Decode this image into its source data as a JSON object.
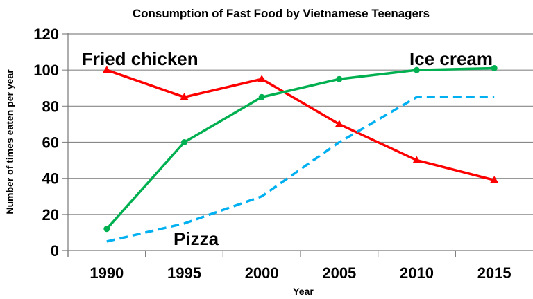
{
  "chart_data": {
    "type": "line",
    "title": "Consumption of Fast Food by Vietnamese Teenagers",
    "xlabel": "Year",
    "ylabel": "Number of times eaten per year",
    "categories": [
      "1990",
      "1995",
      "2000",
      "2005",
      "2010",
      "2015"
    ],
    "ylim": [
      0,
      120
    ],
    "yticks": [
      0,
      20,
      40,
      60,
      80,
      100,
      120
    ],
    "grid": true,
    "series": [
      {
        "name": "Fried chicken",
        "values": [
          100,
          85,
          95,
          70,
          50,
          39
        ],
        "color": "#ff0000",
        "style": "solid",
        "marker": "triangle"
      },
      {
        "name": "Ice cream",
        "values": [
          12,
          60,
          85,
          95,
          100,
          101
        ],
        "color": "#00b050",
        "style": "solid",
        "marker": "circle"
      },
      {
        "name": "Pizza",
        "values": [
          5,
          15,
          30,
          60,
          85,
          85
        ],
        "color": "#00b0f0",
        "style": "dashed",
        "marker": "none"
      }
    ]
  }
}
